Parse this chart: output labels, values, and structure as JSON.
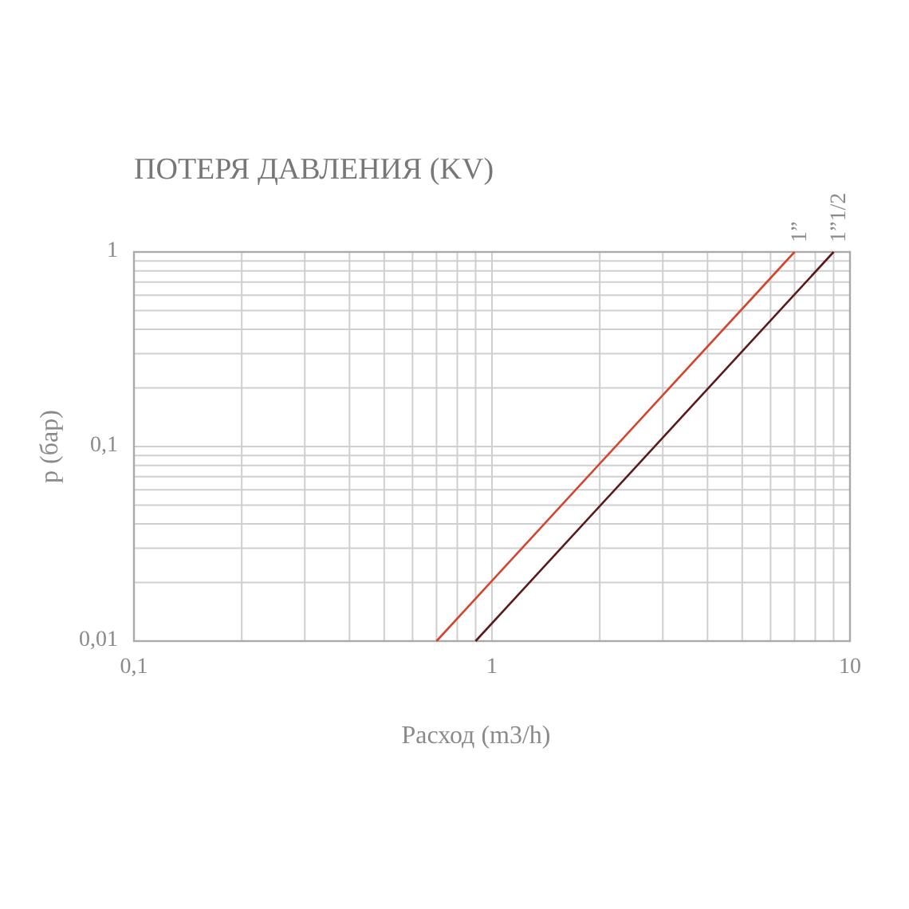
{
  "chart_data": {
    "type": "line",
    "title": "ПОТЕРЯ ДАВЛЕНИЯ (KV)",
    "xlabel": "Расход (m3/h)",
    "ylabel": "р (бар)",
    "log": "xy",
    "grid": true,
    "legend": false,
    "marker": "none",
    "line_style": "solid",
    "xlim": [
      0.1,
      10
    ],
    "ylim": [
      0.01,
      1
    ],
    "xticks": [
      {
        "value": 0.1,
        "label": "0,1"
      },
      {
        "value": 0.2,
        "label": null
      },
      {
        "value": 0.3,
        "label": null
      },
      {
        "value": 0.4,
        "label": null
      },
      {
        "value": 0.5,
        "label": null
      },
      {
        "value": 0.6,
        "label": null
      },
      {
        "value": 0.7,
        "label": null
      },
      {
        "value": 0.8,
        "label": null
      },
      {
        "value": 0.9,
        "label": null
      },
      1,
      {
        "value": 2,
        "label": null
      },
      {
        "value": 3,
        "label": null
      },
      {
        "value": 4,
        "label": null
      },
      {
        "value": 5,
        "label": null
      },
      {
        "value": 6,
        "label": null
      },
      {
        "value": 7,
        "label": null
      },
      {
        "value": 8,
        "label": null
      },
      {
        "value": 9,
        "label": null
      },
      10
    ],
    "yticks": [
      {
        "value": 0.01,
        "label": "0,01"
      },
      {
        "value": 0.02,
        "label": null
      },
      {
        "value": 0.03,
        "label": null
      },
      {
        "value": 0.04,
        "label": null
      },
      {
        "value": 0.05,
        "label": null
      },
      {
        "value": 0.06,
        "label": null
      },
      {
        "value": 0.07,
        "label": null
      },
      {
        "value": 0.08,
        "label": null
      },
      {
        "value": 0.09,
        "label": null
      },
      {
        "value": 0.1,
        "label": "0,1"
      },
      {
        "value": 0.2,
        "label": null
      },
      {
        "value": 0.3,
        "label": null
      },
      {
        "value": 0.4,
        "label": null
      },
      {
        "value": 0.5,
        "label": null
      },
      {
        "value": 0.6,
        "label": null
      },
      {
        "value": 0.7,
        "label": null
      },
      {
        "value": 0.8,
        "label": null
      },
      {
        "value": 0.9,
        "label": null
      },
      1
    ],
    "series": [
      {
        "name": "1”",
        "color": "#d2452f",
        "x": [
          0.7,
          7
        ],
        "values": [
          0.01,
          1
        ]
      },
      {
        "name": "1”1/2",
        "color": "#5a1a1a",
        "x": [
          0.9,
          9
        ],
        "values": [
          0.01,
          1
        ]
      }
    ]
  }
}
